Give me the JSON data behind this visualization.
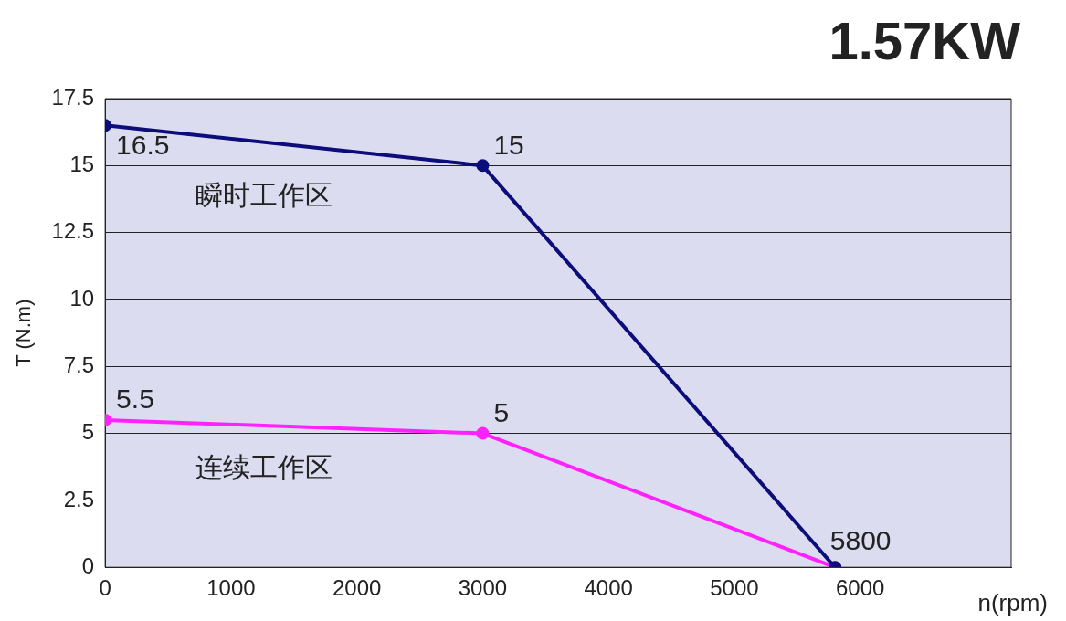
{
  "chart_data": {
    "type": "line",
    "title": "1.57KW",
    "xlabel": "n(rpm)",
    "ylabel": "T (N.m)",
    "xlim": [
      0,
      7200
    ],
    "xticks": [
      0,
      1000,
      2000,
      3000,
      4000,
      5000,
      6000
    ],
    "ylim": [
      0,
      17.5
    ],
    "yticks": [
      0,
      2.5,
      5,
      7.5,
      10,
      12.5,
      15,
      17.5
    ],
    "grid": "y",
    "legend": false,
    "marker": "circle",
    "line_style": "solid",
    "series": [
      {
        "color": "#0c0c7a",
        "x": [
          0,
          3000,
          5800
        ],
        "values": [
          16.5,
          15,
          0
        ],
        "value_labels": [
          "16.5",
          "15",
          null
        ]
      },
      {
        "color": "#ff22ff",
        "x": [
          0,
          3000,
          5800
        ],
        "values": [
          5.5,
          5,
          0
        ],
        "value_labels": [
          "5.5",
          "5",
          null
        ]
      }
    ],
    "annotations": [
      {
        "text": "5800",
        "x": 5800,
        "y": 0
      },
      "瞬时工作区",
      "连续工作区"
    ]
  }
}
